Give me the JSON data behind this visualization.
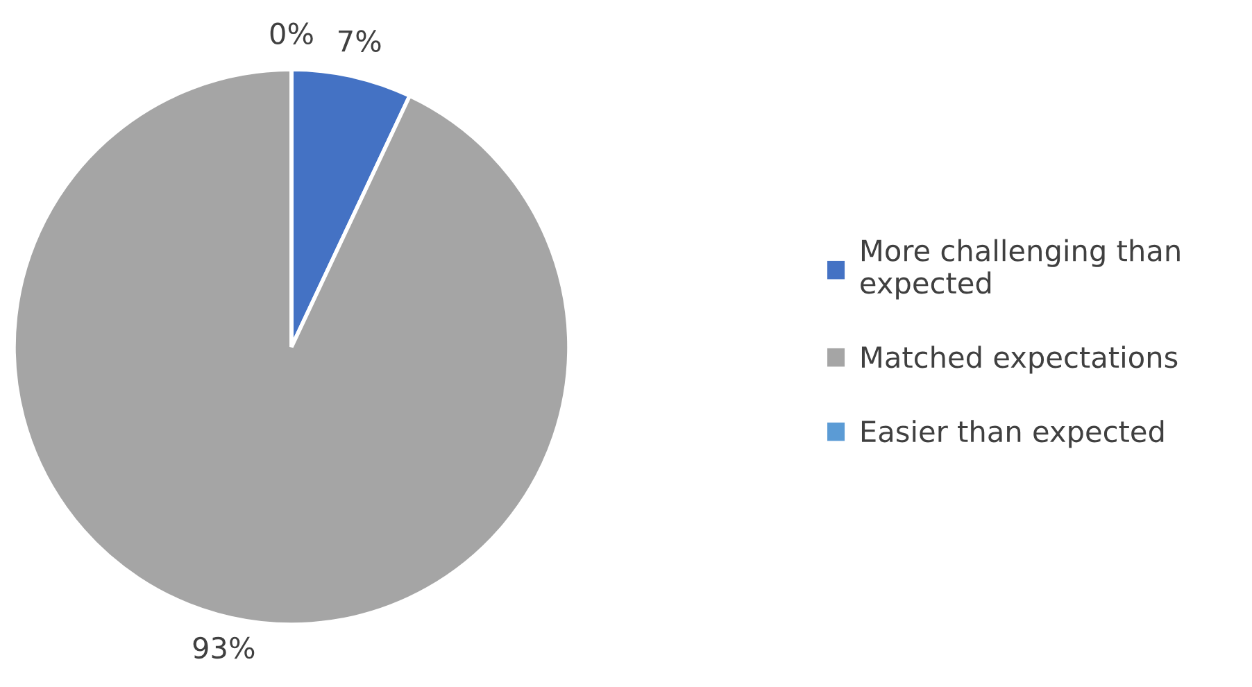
{
  "chart_data": {
    "type": "pie",
    "categories": [
      "More challenging than expected",
      "Matched expectations",
      "Easier than expected"
    ],
    "values": [
      7,
      93,
      0
    ],
    "colors": [
      "#4472c4",
      "#a5a5a5",
      "#5b9bd5"
    ],
    "value_labels": [
      "7%",
      "93%",
      "0%"
    ],
    "legend": "right"
  }
}
